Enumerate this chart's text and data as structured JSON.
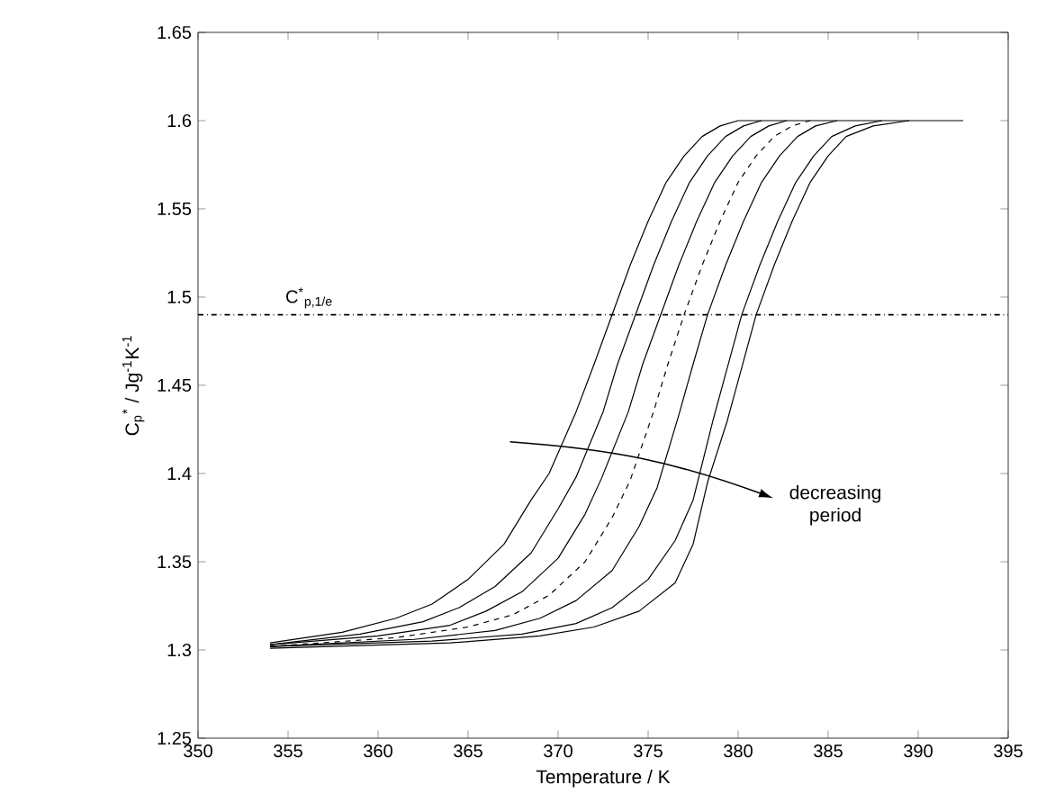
{
  "chart_data": {
    "type": "line",
    "xlabel": "Temperature / K",
    "ylabel": "C$_{p}$$^{*}$ / Jg$^{-1}$K$^{-1}$",
    "xlim": [
      350,
      395
    ],
    "xticks": [
      350,
      355,
      360,
      365,
      370,
      375,
      380,
      385,
      390,
      395
    ],
    "ylim": [
      1.25,
      1.65
    ],
    "yticks": [
      1.25,
      1.3,
      1.35,
      1.4,
      1.45,
      1.5,
      1.55,
      1.6,
      1.65
    ],
    "grid": false,
    "marker": "none",
    "series": [
      {
        "color": "#000000",
        "line_style": "solid",
        "x": [
          354,
          358,
          361,
          363,
          365,
          367,
          368.5,
          369.5,
          371,
          372,
          373,
          374,
          375,
          376,
          377,
          378,
          379,
          380,
          392.5
        ],
        "values": [
          1.304,
          1.31,
          1.318,
          1.326,
          1.34,
          1.36,
          1.385,
          1.4,
          1.435,
          1.462,
          1.49,
          1.518,
          1.543,
          1.565,
          1.58,
          1.591,
          1.597,
          1.6,
          1.6
        ]
      },
      {
        "color": "#000000",
        "line_style": "solid",
        "x": [
          354,
          359,
          362.5,
          364.5,
          366.5,
          368.5,
          370,
          371,
          372.5,
          373.3,
          374.3,
          375.3,
          376.3,
          377.3,
          378.3,
          379.3,
          380.3,
          381.3
        ],
        "values": [
          1.303,
          1.309,
          1.316,
          1.324,
          1.336,
          1.355,
          1.38,
          1.398,
          1.435,
          1.462,
          1.49,
          1.518,
          1.543,
          1.565,
          1.58,
          1.591,
          1.597,
          1.6
        ]
      },
      {
        "color": "#000000",
        "line_style": "solid",
        "x": [
          354,
          360,
          364,
          366,
          368,
          370,
          371.5,
          372.4,
          373.9,
          374.7,
          375.7,
          376.7,
          377.7,
          378.7,
          379.7,
          380.7,
          381.7,
          382.7
        ],
        "values": [
          1.303,
          1.308,
          1.314,
          1.322,
          1.333,
          1.352,
          1.377,
          1.397,
          1.435,
          1.462,
          1.49,
          1.518,
          1.543,
          1.565,
          1.58,
          1.591,
          1.597,
          1.6
        ]
      },
      {
        "color": "#000000",
        "line_style": "dashed",
        "x": [
          354,
          361,
          365,
          367.5,
          369.5,
          371.5,
          373,
          374,
          375.3,
          376.1,
          377,
          378,
          379,
          380,
          381,
          382,
          383,
          384
        ],
        "values": [
          1.302,
          1.307,
          1.313,
          1.32,
          1.331,
          1.35,
          1.375,
          1.396,
          1.435,
          1.462,
          1.49,
          1.518,
          1.543,
          1.565,
          1.58,
          1.591,
          1.597,
          1.6
        ]
      },
      {
        "color": "#000000",
        "line_style": "solid",
        "x": [
          354,
          362,
          366.5,
          369,
          371,
          373,
          374.5,
          375.5,
          376.7,
          377.5,
          378.3,
          379.3,
          380.3,
          381.3,
          382.3,
          383.3,
          384.3,
          385.5
        ],
        "values": [
          1.302,
          1.306,
          1.311,
          1.318,
          1.328,
          1.345,
          1.37,
          1.392,
          1.433,
          1.462,
          1.49,
          1.518,
          1.543,
          1.565,
          1.58,
          1.591,
          1.597,
          1.6
        ]
      },
      {
        "color": "#000000",
        "line_style": "solid",
        "x": [
          354,
          363,
          368,
          371,
          373,
          375,
          376.5,
          377.5,
          378.6,
          379.4,
          380.2,
          381.2,
          382.2,
          383.2,
          384.2,
          385.2,
          386.5,
          388
        ],
        "values": [
          1.302,
          1.305,
          1.309,
          1.315,
          1.324,
          1.34,
          1.362,
          1.385,
          1.43,
          1.46,
          1.49,
          1.518,
          1.543,
          1.565,
          1.58,
          1.591,
          1.597,
          1.6
        ]
      },
      {
        "color": "#000000",
        "line_style": "solid",
        "x": [
          354,
          364,
          369,
          372,
          374.5,
          376.5,
          377.5,
          378.3,
          379.4,
          380.2,
          381,
          382,
          383,
          384,
          385,
          386,
          387.5,
          389.5
        ],
        "values": [
          1.301,
          1.304,
          1.308,
          1.313,
          1.322,
          1.338,
          1.36,
          1.395,
          1.43,
          1.46,
          1.49,
          1.518,
          1.543,
          1.565,
          1.58,
          1.591,
          1.597,
          1.6
        ]
      }
    ],
    "ref_lines": [
      {
        "axis": "y",
        "value": 1.49,
        "label": "C$^{*}$$_{p,1/e}$",
        "line_style": "dashdot",
        "color": "#000000"
      }
    ],
    "annotations": [
      "decreasing period"
    ]
  }
}
